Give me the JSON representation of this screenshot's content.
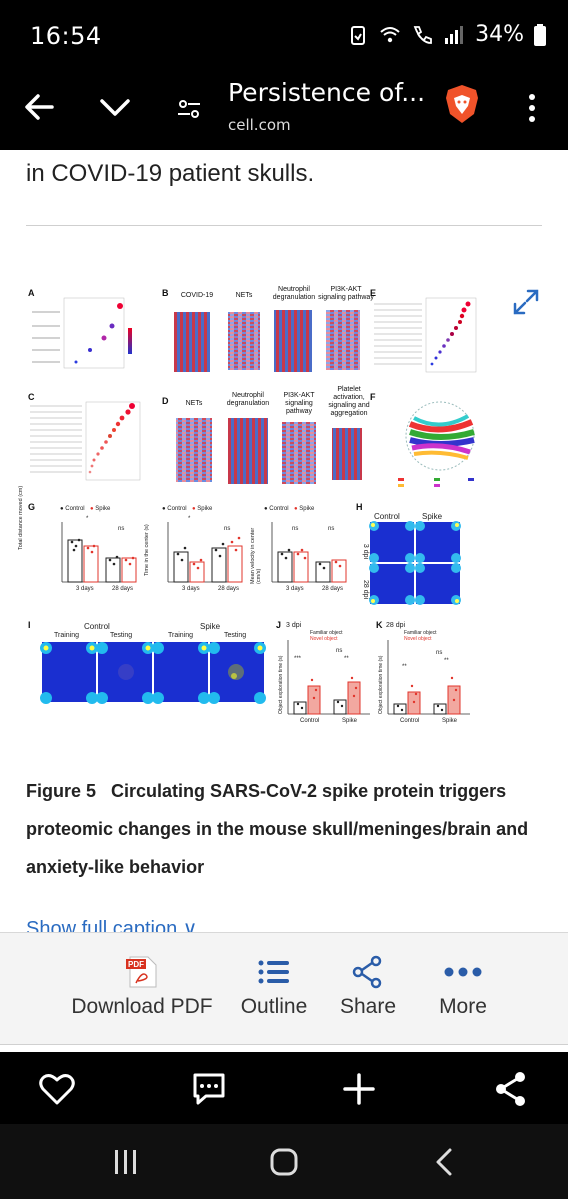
{
  "status": {
    "time": "16:54",
    "battery": "34%"
  },
  "header": {
    "title": "Persistence of...",
    "domain": "cell.com"
  },
  "article": {
    "lead_text": "in COVID-19 patient skulls.",
    "figure": {
      "panels": {
        "a": "A",
        "b": "B",
        "c": "C",
        "d": "D",
        "e": "E",
        "f": "F",
        "g": "G",
        "h": "H",
        "i": "I",
        "j": "J",
        "k": "K"
      },
      "b_titles": [
        "COVID-19",
        "NETs",
        "Neutrophil degranulation",
        "PI3K-AKT signaling pathway"
      ],
      "d_titles": [
        "NETs",
        "Neutrophil degranulation",
        "PI3K-AKT signaling pathway",
        "Platelet activation, signaling and aggregation"
      ],
      "g_legend": [
        "Control",
        "Spike"
      ],
      "g_ylabels": [
        "Total distance moved (cm)",
        "Time in the center (s)",
        "Mean velocity in center (cm/s)"
      ],
      "g_xticks": [
        "3 days",
        "28 days"
      ],
      "g_sig": [
        "*",
        "ns"
      ],
      "h_labels": {
        "control": "Control",
        "spike": "Spike",
        "row1": "3 dpi",
        "row2": "28 dpi"
      },
      "i_labels": {
        "control": "Control",
        "spike": "Spike",
        "training": "Training",
        "testing": "Testing"
      },
      "j_label": "3 dpi",
      "k_label": "28 dpi",
      "jk_legend": [
        "Familiar object",
        "Novel object"
      ],
      "jk_ylabel": "Object exploration time (s)",
      "jk_xticks": [
        "Control",
        "Spike"
      ],
      "jk_sig": [
        "***",
        "**",
        "ns"
      ]
    },
    "caption_number": "Figure 5",
    "caption_text": "Circulating SARS-CoV-2 spike protein triggers proteomic changes in the mouse skull/meninges/brain and anxiety-like behavior",
    "show_full_caption": "Show full caption"
  },
  "actions": {
    "download_pdf": "Download PDF",
    "outline": "Outline",
    "share": "Share",
    "more": "More",
    "pdf_badge": "PDF"
  },
  "colors": {
    "link": "#2a6bc1",
    "brave": "#f0532a",
    "spike_red": "#e2342b",
    "heat_blue": "#1a2fd0"
  }
}
